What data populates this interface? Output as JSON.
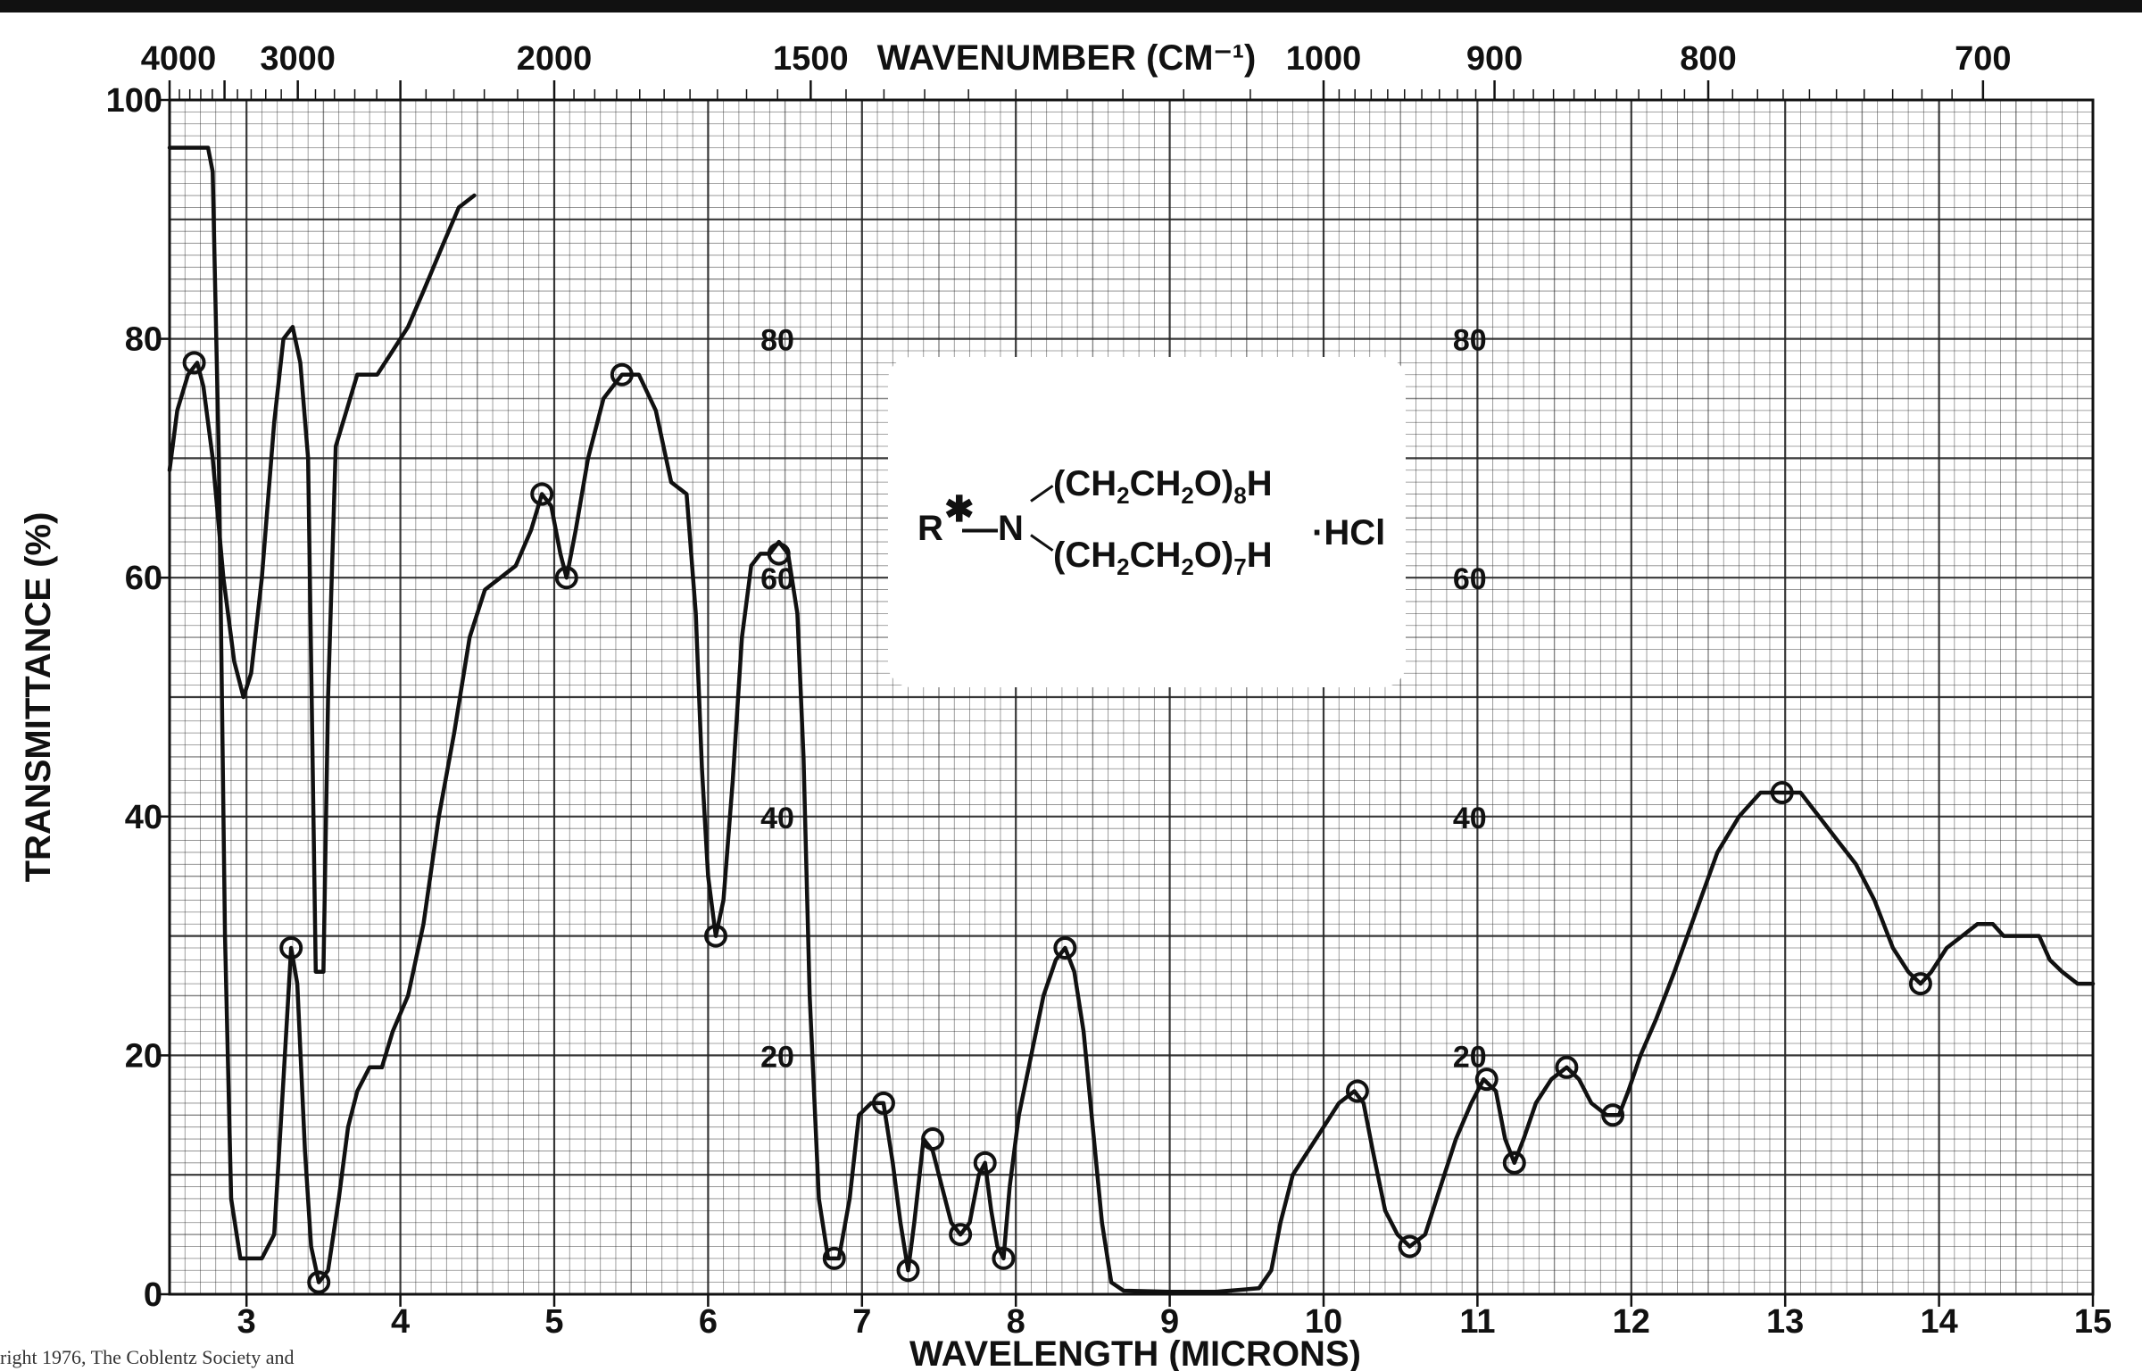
{
  "chart_data": {
    "type": "line",
    "title": "",
    "xlabel": "WAVELENGTH (MICRONS)",
    "x2label": "WAVENUMBER (CM⁻¹)",
    "ylabel": "TRANSMITTANCE (%)",
    "xlim": [
      2.5,
      15
    ],
    "ylim": [
      0,
      100
    ],
    "grid": true,
    "x_ticks": [
      "3",
      "4",
      "5",
      "6",
      "7",
      "8",
      "9",
      "10",
      "11",
      "12",
      "13",
      "14",
      "15"
    ],
    "y_ticks": [
      "0",
      "20",
      "40",
      "60",
      "80",
      "100"
    ],
    "top_ticks": [
      {
        "label": "4000",
        "wavenumber": 4000
      },
      {
        "label": "3000",
        "wavenumber": 3000
      },
      {
        "label": "2000",
        "wavenumber": 2000
      },
      {
        "label": "1500",
        "wavenumber": 1500
      },
      {
        "label": "1000",
        "wavenumber": 1000
      },
      {
        "label": "900",
        "wavenumber": 900
      },
      {
        "label": "800",
        "wavenumber": 800
      },
      {
        "label": "700",
        "wavenumber": 700
      }
    ],
    "inner_labels": [
      {
        "text": "80",
        "x": 6.45,
        "y": 80
      },
      {
        "text": "60",
        "x": 6.45,
        "y": 60
      },
      {
        "text": "40",
        "x": 6.45,
        "y": 40
      },
      {
        "text": "20",
        "x": 6.45,
        "y": 20
      },
      {
        "text": "80",
        "x": 10.95,
        "y": 80
      },
      {
        "text": "60",
        "x": 10.95,
        "y": 60
      },
      {
        "text": "40",
        "x": 10.95,
        "y": 40
      },
      {
        "text": "20",
        "x": 10.95,
        "y": 20
      }
    ],
    "series": [
      {
        "points": [
          [
            2.5,
            69
          ],
          [
            2.55,
            74
          ],
          [
            2.62,
            77
          ],
          [
            2.68,
            78
          ],
          [
            2.72,
            76
          ],
          [
            2.78,
            70
          ],
          [
            2.85,
            60
          ],
          [
            2.92,
            53
          ],
          [
            2.98,
            50
          ],
          [
            3.03,
            52
          ],
          [
            3.1,
            60
          ],
          [
            3.18,
            73
          ],
          [
            3.24,
            80
          ],
          [
            3.3,
            81
          ],
          [
            3.35,
            78
          ],
          [
            3.4,
            70
          ],
          [
            3.45,
            27
          ],
          [
            3.5,
            27
          ],
          [
            3.53,
            50
          ],
          [
            3.58,
            71
          ],
          [
            3.65,
            74
          ],
          [
            3.72,
            77
          ],
          [
            3.85,
            77
          ],
          [
            3.95,
            79
          ],
          [
            4.05,
            81
          ],
          [
            4.15,
            84
          ],
          [
            4.28,
            88
          ],
          [
            4.38,
            91
          ],
          [
            4.48,
            92
          ]
        ],
        "markers": [
          [
            2.66,
            78
          ]
        ]
      },
      {
        "points": [
          [
            2.5,
            96
          ],
          [
            2.75,
            96
          ],
          [
            2.78,
            94
          ],
          [
            2.82,
            70
          ],
          [
            2.86,
            30
          ],
          [
            2.9,
            8
          ],
          [
            2.96,
            3
          ],
          [
            3.1,
            3
          ],
          [
            3.18,
            5
          ],
          [
            3.24,
            18
          ],
          [
            3.29,
            29
          ],
          [
            3.33,
            26
          ],
          [
            3.38,
            12
          ],
          [
            3.42,
            4
          ],
          [
            3.47,
            1
          ],
          [
            3.53,
            2
          ],
          [
            3.6,
            8
          ],
          [
            3.66,
            14
          ],
          [
            3.72,
            17
          ],
          [
            3.8,
            19
          ],
          [
            3.88,
            19
          ],
          [
            3.95,
            22
          ],
          [
            4.05,
            25
          ],
          [
            4.15,
            31
          ],
          [
            4.25,
            40
          ],
          [
            4.35,
            47
          ],
          [
            4.45,
            55
          ],
          [
            4.55,
            59
          ],
          [
            4.65,
            60
          ],
          [
            4.75,
            61
          ],
          [
            4.85,
            64
          ],
          [
            4.92,
            67
          ],
          [
            4.98,
            66
          ],
          [
            5.04,
            62
          ],
          [
            5.08,
            60
          ],
          [
            5.14,
            64
          ],
          [
            5.22,
            70
          ],
          [
            5.32,
            75
          ],
          [
            5.44,
            77
          ],
          [
            5.55,
            77
          ],
          [
            5.66,
            74
          ],
          [
            5.76,
            68
          ],
          [
            5.86,
            67
          ],
          [
            5.92,
            57
          ],
          [
            5.96,
            44
          ],
          [
            6.0,
            35
          ],
          [
            6.05,
            30
          ],
          [
            6.1,
            33
          ],
          [
            6.16,
            43
          ],
          [
            6.22,
            55
          ],
          [
            6.28,
            61
          ],
          [
            6.34,
            62
          ],
          [
            6.4,
            62
          ],
          [
            6.46,
            63
          ],
          [
            6.52,
            62
          ],
          [
            6.58,
            57
          ],
          [
            6.62,
            45
          ],
          [
            6.66,
            25
          ],
          [
            6.72,
            8
          ],
          [
            6.78,
            3
          ],
          [
            6.85,
            3
          ],
          [
            6.92,
            8
          ],
          [
            6.98,
            15
          ],
          [
            7.06,
            16
          ],
          [
            7.14,
            16
          ],
          [
            7.2,
            11
          ],
          [
            7.25,
            6
          ],
          [
            7.3,
            2
          ],
          [
            7.34,
            6
          ],
          [
            7.4,
            13
          ],
          [
            7.46,
            12
          ],
          [
            7.52,
            9
          ],
          [
            7.58,
            6
          ],
          [
            7.64,
            5
          ],
          [
            7.7,
            6
          ],
          [
            7.76,
            10
          ],
          [
            7.8,
            11
          ],
          [
            7.84,
            7
          ],
          [
            7.88,
            4
          ],
          [
            7.92,
            3
          ],
          [
            7.96,
            9
          ],
          [
            8.02,
            15
          ],
          [
            8.1,
            20
          ],
          [
            8.18,
            25
          ],
          [
            8.26,
            28
          ],
          [
            8.32,
            29
          ],
          [
            8.38,
            27
          ],
          [
            8.44,
            22
          ],
          [
            8.5,
            14
          ],
          [
            8.56,
            6
          ],
          [
            8.62,
            1
          ],
          [
            8.7,
            0.3
          ],
          [
            9.0,
            0.2
          ],
          [
            9.3,
            0.2
          ],
          [
            9.58,
            0.5
          ],
          [
            9.66,
            2
          ],
          [
            9.72,
            6
          ],
          [
            9.8,
            10
          ],
          [
            9.9,
            12
          ],
          [
            10.0,
            14
          ],
          [
            10.1,
            16
          ],
          [
            10.2,
            17
          ],
          [
            10.26,
            16
          ],
          [
            10.32,
            12
          ],
          [
            10.4,
            7
          ],
          [
            10.48,
            5
          ],
          [
            10.56,
            4
          ],
          [
            10.66,
            5
          ],
          [
            10.76,
            9
          ],
          [
            10.86,
            13
          ],
          [
            10.96,
            16
          ],
          [
            11.04,
            18
          ],
          [
            11.12,
            17
          ],
          [
            11.18,
            13
          ],
          [
            11.24,
            11
          ],
          [
            11.3,
            13
          ],
          [
            11.38,
            16
          ],
          [
            11.48,
            18
          ],
          [
            11.58,
            19
          ],
          [
            11.66,
            18
          ],
          [
            11.74,
            16
          ],
          [
            11.84,
            15
          ],
          [
            11.92,
            15
          ],
          [
            11.98,
            17
          ],
          [
            12.06,
            20
          ],
          [
            12.16,
            23
          ],
          [
            12.28,
            27
          ],
          [
            12.42,
            32
          ],
          [
            12.56,
            37
          ],
          [
            12.7,
            40
          ],
          [
            12.84,
            42
          ],
          [
            12.98,
            42
          ],
          [
            13.1,
            42
          ],
          [
            13.22,
            40
          ],
          [
            13.34,
            38
          ],
          [
            13.46,
            36
          ],
          [
            13.58,
            33
          ],
          [
            13.7,
            29
          ],
          [
            13.8,
            27
          ],
          [
            13.88,
            26
          ],
          [
            13.95,
            27
          ],
          [
            14.05,
            29
          ],
          [
            14.15,
            30
          ],
          [
            14.25,
            31
          ],
          [
            14.35,
            31
          ],
          [
            14.42,
            30
          ],
          [
            14.55,
            30
          ],
          [
            14.65,
            30
          ],
          [
            14.72,
            28
          ],
          [
            14.8,
            27
          ],
          [
            14.9,
            26
          ],
          [
            15.0,
            26
          ]
        ],
        "markers": [
          [
            3.29,
            29
          ],
          [
            3.47,
            1
          ],
          [
            4.92,
            67
          ],
          [
            5.08,
            60
          ],
          [
            5.44,
            77
          ],
          [
            6.05,
            30
          ],
          [
            6.46,
            62
          ],
          [
            6.82,
            3
          ],
          [
            7.14,
            16
          ],
          [
            7.3,
            2
          ],
          [
            7.46,
            13
          ],
          [
            7.64,
            5
          ],
          [
            7.8,
            11
          ],
          [
            7.92,
            3
          ],
          [
            8.32,
            29
          ],
          [
            10.22,
            17
          ],
          [
            10.56,
            4
          ],
          [
            11.06,
            18
          ],
          [
            11.24,
            11
          ],
          [
            11.58,
            19
          ],
          [
            11.88,
            15
          ],
          [
            12.98,
            42
          ],
          [
            13.88,
            26
          ]
        ]
      }
    ]
  },
  "formula": {
    "r": "R",
    "star": "✱",
    "dash": "—",
    "n": "N",
    "group1_main": "(CH",
    "group1_sub_a": "2",
    "group1_mid": "CH",
    "group1_sub_b": "2",
    "group1_tail": "O)",
    "group1_sub_n": "8",
    "group1_end": "H",
    "group2_main": "(CH",
    "group2_sub_a": "2",
    "group2_mid": "CH",
    "group2_sub_b": "2",
    "group2_tail": "O)",
    "group2_sub_n": "7",
    "group2_end": "H",
    "salt": "·HCl"
  },
  "footnote": "right 1976, The Coblentz Society and"
}
